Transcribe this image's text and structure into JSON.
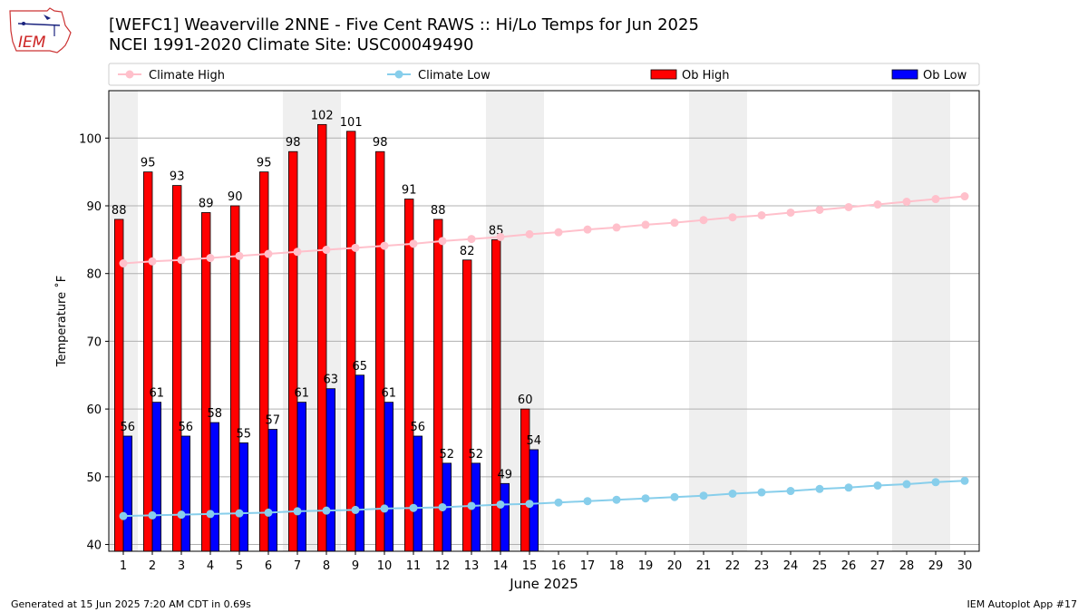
{
  "logo": {
    "text": "IEM"
  },
  "title": {
    "line1": "[WEFC1] Weaverville 2NNE - Five Cent RAWS :: Hi/Lo Temps for Jun 2025",
    "line2": "NCEI 1991-2020 Climate Site: USC00049490"
  },
  "footer": {
    "left": "Generated at 15 Jun 2025 7:20 AM CDT in 0.69s",
    "right": "IEM Autoplot App #17"
  },
  "chart_data": {
    "type": "bar",
    "xlabel": "June 2025",
    "ylabel": "Temperature ˚F",
    "ylim": [
      39,
      107
    ],
    "yticks": [
      40,
      50,
      60,
      70,
      80,
      90,
      100
    ],
    "grid": true,
    "legend_placement": "top",
    "weekend_shading": [
      [
        1,
        1
      ],
      [
        7,
        8
      ],
      [
        14,
        15
      ],
      [
        21,
        22
      ],
      [
        28,
        29
      ]
    ],
    "days": [
      1,
      2,
      3,
      4,
      5,
      6,
      7,
      8,
      9,
      10,
      11,
      12,
      13,
      14,
      15,
      16,
      17,
      18,
      19,
      20,
      21,
      22,
      23,
      24,
      25,
      26,
      27,
      28,
      29,
      30
    ],
    "series": [
      {
        "name": "Climate High",
        "kind": "line",
        "color": "#ffc0cb",
        "values": [
          81.5,
          81.8,
          82.0,
          82.3,
          82.6,
          82.9,
          83.2,
          83.5,
          83.8,
          84.1,
          84.4,
          84.8,
          85.1,
          85.4,
          85.8,
          86.1,
          86.5,
          86.8,
          87.2,
          87.5,
          87.9,
          88.3,
          88.6,
          89.0,
          89.4,
          89.8,
          90.2,
          90.6,
          91.0,
          91.4
        ]
      },
      {
        "name": "Climate Low",
        "kind": "line",
        "color": "#87ceeb",
        "values": [
          44.2,
          44.3,
          44.4,
          44.5,
          44.6,
          44.7,
          44.9,
          45.0,
          45.1,
          45.3,
          45.4,
          45.5,
          45.7,
          45.9,
          46.0,
          46.2,
          46.4,
          46.6,
          46.8,
          47.0,
          47.2,
          47.5,
          47.7,
          47.9,
          48.2,
          48.4,
          48.7,
          48.9,
          49.2,
          49.4
        ]
      },
      {
        "name": "Ob High",
        "kind": "bar",
        "color": "#ff0000",
        "values": [
          88,
          95,
          93,
          89,
          90,
          95,
          98,
          102,
          101,
          98,
          91,
          88,
          82,
          85,
          60
        ]
      },
      {
        "name": "Ob Low",
        "kind": "bar",
        "color": "#0000ff",
        "values": [
          56,
          61,
          56,
          58,
          55,
          57,
          61,
          63,
          65,
          61,
          56,
          52,
          52,
          49,
          54
        ]
      }
    ]
  }
}
